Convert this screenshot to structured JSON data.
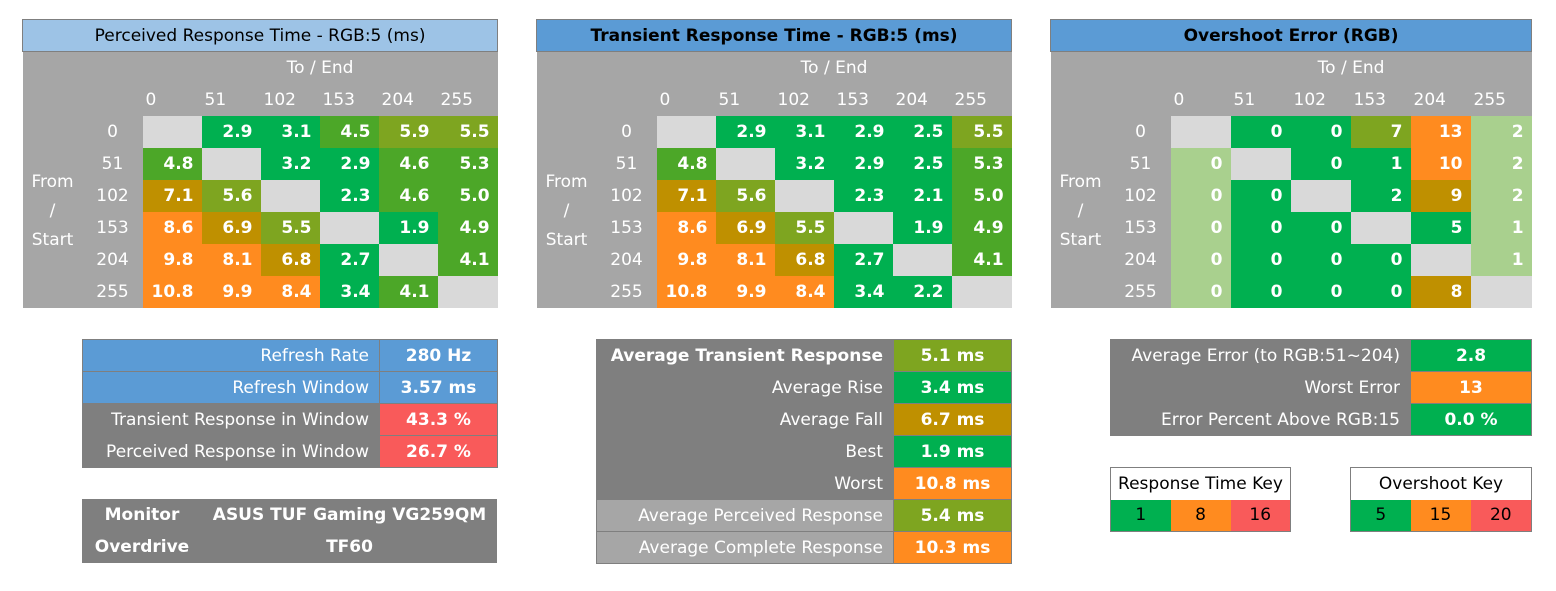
{
  "colors": {
    "green": "#00b050",
    "olive_green": "#4ca728",
    "olive": "#7ea520",
    "gold": "#bf9000",
    "orange": "#ff8b1f",
    "red": "#f95a5a",
    "pale_green": "#a9d08e",
    "light_gray": "#d9d9d9",
    "gray": "#a6a6a6",
    "dark_gray": "#7f7f7f",
    "blue": "#5b9bd5",
    "light_blue": "#9dc3e6"
  },
  "chart_data": [
    {
      "type": "heatmap",
      "title": "Perceived Response Time - RGB:5 (ms)",
      "xlabel": "To / End",
      "ylabel": "From / Start",
      "x": [
        "0",
        "51",
        "102",
        "153",
        "204",
        "255"
      ],
      "y": [
        "0",
        "51",
        "102",
        "153",
        "204",
        "255"
      ],
      "values": [
        [
          null,
          2.9,
          3.1,
          4.5,
          5.9,
          5.5
        ],
        [
          4.8,
          null,
          3.2,
          2.9,
          4.6,
          5.3
        ],
        [
          7.1,
          5.6,
          null,
          2.3,
          4.6,
          5.0
        ],
        [
          8.6,
          6.9,
          5.5,
          null,
          1.9,
          4.9
        ],
        [
          9.8,
          8.1,
          6.8,
          2.7,
          null,
          4.1
        ],
        [
          10.8,
          9.9,
          8.4,
          3.4,
          4.1,
          null
        ]
      ]
    },
    {
      "type": "heatmap",
      "title": "Transient Response Time - RGB:5 (ms)",
      "xlabel": "To / End",
      "ylabel": "From / Start",
      "x": [
        "0",
        "51",
        "102",
        "153",
        "204",
        "255"
      ],
      "y": [
        "0",
        "51",
        "102",
        "153",
        "204",
        "255"
      ],
      "values": [
        [
          null,
          2.9,
          3.1,
          2.9,
          2.5,
          5.5
        ],
        [
          4.8,
          null,
          3.2,
          2.9,
          2.5,
          5.3
        ],
        [
          7.1,
          5.6,
          null,
          2.3,
          2.1,
          5.0
        ],
        [
          8.6,
          6.9,
          5.5,
          null,
          1.9,
          4.9
        ],
        [
          9.8,
          8.1,
          6.8,
          2.7,
          null,
          4.1
        ],
        [
          10.8,
          9.9,
          8.4,
          3.4,
          2.2,
          null
        ]
      ]
    },
    {
      "type": "heatmap",
      "title": "Overshoot Error (RGB)",
      "xlabel": "To / End",
      "ylabel": "From / Start",
      "x": [
        "0",
        "51",
        "102",
        "153",
        "204",
        "255"
      ],
      "y": [
        "0",
        "51",
        "102",
        "153",
        "204",
        "255"
      ],
      "values": [
        [
          null,
          0,
          0,
          7,
          13,
          2
        ],
        [
          0,
          null,
          0,
          1,
          10,
          2
        ],
        [
          0,
          0,
          null,
          2,
          9,
          2
        ],
        [
          0,
          0,
          0,
          null,
          5,
          1
        ],
        [
          0,
          0,
          0,
          0,
          null,
          1
        ],
        [
          0,
          0,
          0,
          0,
          8,
          null
        ]
      ]
    }
  ],
  "matrix_display": [
    {
      "cells": [
        [
          "",
          "2.9",
          "3.1",
          "4.5",
          "5.9",
          "5.5"
        ],
        [
          "4.8",
          "",
          "3.2",
          "2.9",
          "4.6",
          "5.3"
        ],
        [
          "7.1",
          "5.6",
          "",
          "2.3",
          "4.6",
          "5.0"
        ],
        [
          "8.6",
          "6.9",
          "5.5",
          "",
          "1.9",
          "4.9"
        ],
        [
          "9.8",
          "8.1",
          "6.8",
          "2.7",
          "",
          "4.1"
        ],
        [
          "10.8",
          "9.9",
          "8.4",
          "3.4",
          "4.1",
          ""
        ]
      ],
      "colors": [
        [
          "light_gray",
          "green",
          "green",
          "olive_green",
          "olive",
          "olive"
        ],
        [
          "olive_green",
          "light_gray",
          "green",
          "green",
          "olive_green",
          "olive_green"
        ],
        [
          "gold",
          "olive",
          "light_gray",
          "green",
          "olive_green",
          "olive_green"
        ],
        [
          "orange",
          "gold",
          "olive",
          "light_gray",
          "green",
          "olive_green"
        ],
        [
          "orange",
          "orange",
          "gold",
          "green",
          "light_gray",
          "olive_green"
        ],
        [
          "orange",
          "orange",
          "orange",
          "green",
          "olive_green",
          "light_gray"
        ]
      ]
    },
    {
      "cells": [
        [
          "",
          "2.9",
          "3.1",
          "2.9",
          "2.5",
          "5.5"
        ],
        [
          "4.8",
          "",
          "3.2",
          "2.9",
          "2.5",
          "5.3"
        ],
        [
          "7.1",
          "5.6",
          "",
          "2.3",
          "2.1",
          "5.0"
        ],
        [
          "8.6",
          "6.9",
          "5.5",
          "",
          "1.9",
          "4.9"
        ],
        [
          "9.8",
          "8.1",
          "6.8",
          "2.7",
          "",
          "4.1"
        ],
        [
          "10.8",
          "9.9",
          "8.4",
          "3.4",
          "2.2",
          ""
        ]
      ],
      "colors": [
        [
          "light_gray",
          "green",
          "green",
          "green",
          "green",
          "olive"
        ],
        [
          "olive_green",
          "light_gray",
          "green",
          "green",
          "green",
          "olive_green"
        ],
        [
          "gold",
          "olive",
          "light_gray",
          "green",
          "green",
          "olive_green"
        ],
        [
          "orange",
          "gold",
          "olive",
          "light_gray",
          "green",
          "olive_green"
        ],
        [
          "orange",
          "orange",
          "gold",
          "green",
          "light_gray",
          "olive_green"
        ],
        [
          "orange",
          "orange",
          "orange",
          "green",
          "green",
          "light_gray"
        ]
      ]
    },
    {
      "cells": [
        [
          "",
          "0",
          "0",
          "7",
          "13",
          "2"
        ],
        [
          "0",
          "",
          "0",
          "1",
          "10",
          "2"
        ],
        [
          "0",
          "0",
          "",
          "2",
          "9",
          "2"
        ],
        [
          "0",
          "0",
          "0",
          "",
          "5",
          "1"
        ],
        [
          "0",
          "0",
          "0",
          "0",
          "",
          "1"
        ],
        [
          "0",
          "0",
          "0",
          "0",
          "8",
          ""
        ]
      ],
      "colors": [
        [
          "light_gray",
          "green",
          "green",
          "olive",
          "orange",
          "pale_green"
        ],
        [
          "pale_green",
          "light_gray",
          "green",
          "green",
          "orange",
          "pale_green"
        ],
        [
          "pale_green",
          "green",
          "light_gray",
          "green",
          "gold",
          "pale_green"
        ],
        [
          "pale_green",
          "green",
          "green",
          "light_gray",
          "green",
          "pale_green"
        ],
        [
          "pale_green",
          "green",
          "green",
          "green",
          "light_gray",
          "pale_green"
        ],
        [
          "pale_green",
          "green",
          "green",
          "green",
          "gold",
          "light_gray"
        ]
      ]
    }
  ],
  "labels": {
    "to_end": "To / End",
    "from_start": "From / Start",
    "levels": [
      "0",
      "51",
      "102",
      "153",
      "204",
      "255"
    ]
  },
  "refresh": {
    "rows": [
      {
        "label": "Refresh Rate",
        "value": "280 Hz",
        "label_color": "blue",
        "value_color": "blue"
      },
      {
        "label": "Refresh Window",
        "value": "3.57 ms",
        "label_color": "blue",
        "value_color": "blue"
      },
      {
        "label": "Transient Response in Window",
        "value": "43.3 %",
        "label_color": "dark_gray",
        "value_color": "red"
      },
      {
        "label": "Perceived Response in Window",
        "value": "26.7 %",
        "label_color": "dark_gray",
        "value_color": "red"
      }
    ]
  },
  "monitor": {
    "monitor_label": "Monitor",
    "monitor_value": "ASUS TUF Gaming VG259QM",
    "overdrive_label": "Overdrive",
    "overdrive_value": "TF60"
  },
  "transient_stats": {
    "rows": [
      {
        "label": "Average Transient Response",
        "value": "5.1 ms",
        "label_color": "dark_gray",
        "value_color": "olive",
        "bold": true
      },
      {
        "label": "Average Rise",
        "value": "3.4 ms",
        "label_color": "dark_gray",
        "value_color": "green"
      },
      {
        "label": "Average Fall",
        "value": "6.7 ms",
        "label_color": "dark_gray",
        "value_color": "gold"
      },
      {
        "label": "Best",
        "value": "1.9 ms",
        "label_color": "dark_gray",
        "value_color": "green"
      },
      {
        "label": "Worst",
        "value": "10.8 ms",
        "label_color": "dark_gray",
        "value_color": "orange"
      },
      {
        "label": "Average Perceived Response",
        "value": "5.4 ms",
        "label_color": "gray",
        "value_color": "olive"
      },
      {
        "label": "Average Complete Response",
        "value": "10.3 ms",
        "label_color": "gray",
        "value_color": "orange"
      }
    ]
  },
  "error_stats": {
    "rows": [
      {
        "label": "Average Error (to RGB:51~204)",
        "value": "2.8",
        "label_color": "dark_gray",
        "value_color": "green"
      },
      {
        "label": "Worst Error",
        "value": "13",
        "label_color": "dark_gray",
        "value_color": "orange"
      },
      {
        "label": "Error Percent Above RGB:15",
        "value": "0.0 %",
        "label_color": "dark_gray",
        "value_color": "green"
      }
    ]
  },
  "response_key": {
    "title": "Response Time Key",
    "items": [
      {
        "label": "1",
        "color": "green"
      },
      {
        "label": "8",
        "color": "orange"
      },
      {
        "label": "16",
        "color": "red"
      }
    ]
  },
  "overshoot_key": {
    "title": "Overshoot Key",
    "items": [
      {
        "label": "5",
        "color": "green"
      },
      {
        "label": "15",
        "color": "orange"
      },
      {
        "label": "20",
        "color": "red"
      }
    ]
  }
}
